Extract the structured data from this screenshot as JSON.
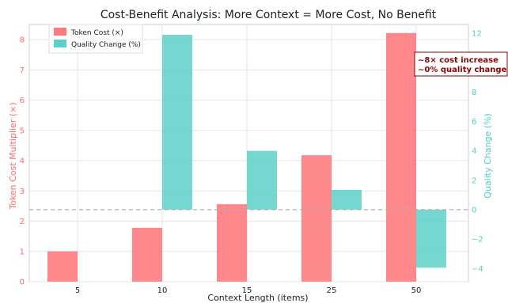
{
  "chart_data": {
    "type": "bar",
    "title": "Cost-Benefit Analysis: More Context = More Cost, No Benefit",
    "xlabel": "Context Length (items)",
    "categories": [
      "5",
      "10",
      "15",
      "25",
      "50"
    ],
    "y_left": {
      "label": "Token Cost Multiplier (×)",
      "lim": [
        0,
        8.5
      ],
      "ticks": [
        0,
        1,
        2,
        3,
        4,
        5,
        6,
        7,
        8
      ]
    },
    "y_right": {
      "label": "Quality Change (%)",
      "lim": [
        -4.9,
        12.6
      ],
      "ticks": [
        -4,
        -2,
        0,
        2,
        4,
        6,
        8,
        10,
        12
      ]
    },
    "series": [
      {
        "name": "Token Cost (×)",
        "axis": "left",
        "color": "#ff7b7f",
        "values": [
          1.0,
          1.78,
          2.56,
          4.18,
          8.22
        ]
      },
      {
        "name": "Quality Change (%)",
        "axis": "right",
        "color": "#5ecfc8",
        "values": [
          0.0,
          11.9,
          4.0,
          1.35,
          -3.95
        ]
      }
    ],
    "annotation": {
      "lines": [
        "~8× cost increase",
        "~0% quality change"
      ],
      "color": "#8b0000"
    },
    "legend_position": "top-left",
    "grid": true,
    "colors": {
      "left_axis": "#ff6b6b",
      "right_axis": "#4ecdc4",
      "zero_line": "#aaaaaa"
    }
  }
}
